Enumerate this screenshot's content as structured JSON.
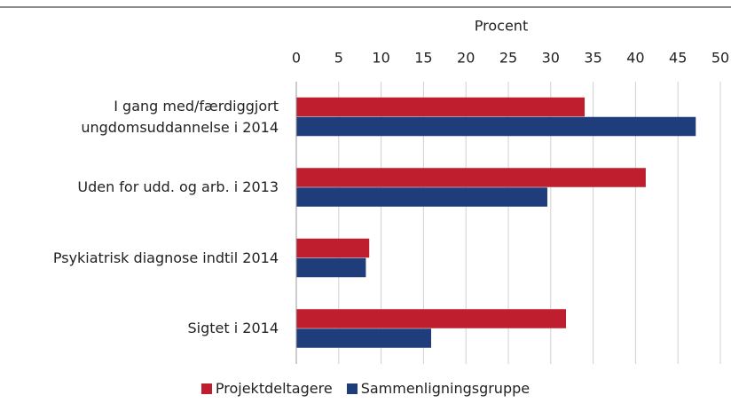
{
  "chart_data": {
    "type": "hbar",
    "x_label": "Procent",
    "categories": [
      "I gang med/færdiggjort ungdomsuddannelse i 2014",
      "Uden for udd. og arb. i 2013",
      "Psykiatrisk diagnose indtil 2014",
      "Sigtet i 2014"
    ],
    "series": [
      {
        "name": "Projektdeltagere",
        "color": "#be1e2d",
        "values": [
          34,
          41.2,
          8.6,
          31.8
        ]
      },
      {
        "name": "Sammenligningsgruppe",
        "color": "#1f3d7a",
        "values": [
          47.1,
          29.6,
          8.2,
          15.9
        ]
      }
    ],
    "xlim": [
      0,
      50
    ],
    "xticks": [
      0,
      5,
      10,
      15,
      20,
      25,
      30,
      35,
      40,
      45,
      50
    ],
    "grid": true
  }
}
